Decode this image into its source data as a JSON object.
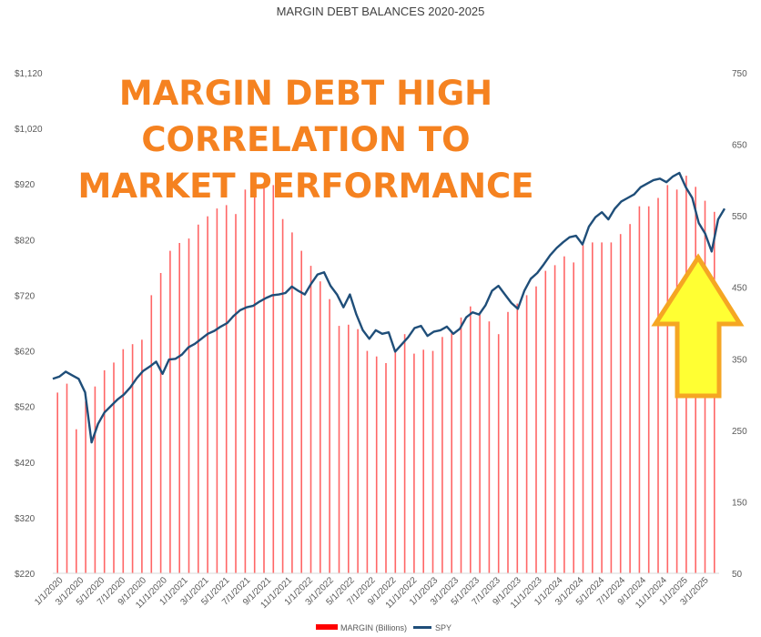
{
  "chart_data": {
    "type": "bar+line",
    "title": "MARGIN DEBT BALANCES 2020-2025",
    "annotation": [
      "MARGIN DEBT HIGH",
      "CORRELATION TO",
      "MARKET PERFORMANCE"
    ],
    "y_left": {
      "ticks": [
        "$220",
        "$320",
        "$420",
        "$520",
        "$620",
        "$720",
        "$820",
        "$920",
        "$1,020",
        "$1,120"
      ],
      "range": [
        220,
        1120
      ]
    },
    "y_right": {
      "ticks": [
        "50",
        "150",
        "250",
        "350",
        "450",
        "550",
        "650",
        "750"
      ],
      "range": [
        50,
        750
      ]
    },
    "x_ticks": [
      "1/1/2020",
      "3/1/2020",
      "5/1/2020",
      "7/1/2020",
      "9/1/2020",
      "11/1/2020",
      "1/1/2021",
      "3/1/2021",
      "5/1/2021",
      "7/1/2021",
      "9/1/2021",
      "11/1/2021",
      "1/1/2022",
      "3/1/2022",
      "5/1/2022",
      "7/1/2022",
      "9/1/2022",
      "11/1/2022",
      "1/1/2023",
      "3/1/2023",
      "5/1/2023",
      "7/1/2023",
      "9/1/2023",
      "11/1/2023",
      "1/1/2024",
      "3/1/2024",
      "5/1/2024",
      "7/1/2024",
      "9/1/2024",
      "11/1/2024",
      "1/1/2025",
      "3/1/2025"
    ],
    "margin_series": {
      "name": "MARGIN (Billions)",
      "color": "#ff0000",
      "values": [
        545,
        561,
        479,
        529,
        556,
        585,
        599,
        623,
        632,
        640,
        720,
        760,
        800,
        814,
        822,
        847,
        862,
        876,
        882,
        866,
        910,
        935,
        919,
        918,
        857,
        833,
        800,
        773,
        745,
        713,
        665,
        667,
        659,
        620,
        610,
        598,
        617,
        650,
        615,
        622,
        620,
        645,
        655,
        680,
        700,
        685,
        673,
        650,
        690,
        705,
        720,
        736,
        764,
        774,
        790,
        779,
        810,
        815,
        815,
        815,
        830,
        848,
        880,
        880,
        895,
        918,
        910,
        935,
        915,
        890,
        870
      ]
    },
    "spy_series": {
      "name": "SPY",
      "color": "#1f4e79",
      "values": [
        [
          0,
          322
        ],
        [
          1,
          325
        ],
        [
          2,
          332
        ],
        [
          3,
          327
        ],
        [
          4,
          322
        ],
        [
          5,
          303
        ],
        [
          6,
          233
        ],
        [
          7,
          259
        ],
        [
          8,
          275
        ],
        [
          9,
          284
        ],
        [
          10,
          293
        ],
        [
          11,
          300
        ],
        [
          12,
          310
        ],
        [
          13,
          323
        ],
        [
          14,
          333
        ],
        [
          15,
          339
        ],
        [
          16,
          346
        ],
        [
          17,
          329
        ],
        [
          18,
          349
        ],
        [
          19,
          350
        ],
        [
          20,
          356
        ],
        [
          21,
          366
        ],
        [
          22,
          371
        ],
        [
          23,
          378
        ],
        [
          24,
          385
        ],
        [
          25,
          389
        ],
        [
          26,
          395
        ],
        [
          27,
          400
        ],
        [
          28,
          410
        ],
        [
          29,
          418
        ],
        [
          30,
          422
        ],
        [
          31,
          424
        ],
        [
          32,
          430
        ],
        [
          33,
          435
        ],
        [
          34,
          439
        ],
        [
          35,
          440
        ],
        [
          36,
          442
        ],
        [
          37,
          451
        ],
        [
          38,
          445
        ],
        [
          39,
          440
        ],
        [
          40,
          455
        ],
        [
          41,
          468
        ],
        [
          42,
          471
        ],
        [
          43,
          452
        ],
        [
          44,
          440
        ],
        [
          45,
          422
        ],
        [
          46,
          440
        ],
        [
          47,
          412
        ],
        [
          48,
          390
        ],
        [
          49,
          378
        ],
        [
          50,
          390
        ],
        [
          51,
          385
        ],
        [
          52,
          387
        ],
        [
          53,
          360
        ],
        [
          54,
          370
        ],
        [
          55,
          380
        ],
        [
          56,
          393
        ],
        [
          57,
          396
        ],
        [
          58,
          382
        ],
        [
          59,
          388
        ],
        [
          60,
          390
        ],
        [
          61,
          395
        ],
        [
          62,
          385
        ],
        [
          63,
          392
        ],
        [
          64,
          408
        ],
        [
          65,
          415
        ],
        [
          66,
          412
        ],
        [
          67,
          425
        ],
        [
          68,
          445
        ],
        [
          69,
          452
        ],
        [
          70,
          440
        ],
        [
          71,
          428
        ],
        [
          72,
          420
        ],
        [
          73,
          445
        ],
        [
          74,
          462
        ],
        [
          75,
          470
        ],
        [
          76,
          482
        ],
        [
          77,
          495
        ],
        [
          78,
          505
        ],
        [
          79,
          513
        ],
        [
          80,
          520
        ],
        [
          81,
          522
        ],
        [
          82,
          510
        ],
        [
          83,
          535
        ],
        [
          84,
          548
        ],
        [
          85,
          555
        ],
        [
          86,
          545
        ],
        [
          87,
          560
        ],
        [
          88,
          570
        ],
        [
          89,
          575
        ],
        [
          90,
          580
        ],
        [
          91,
          590
        ],
        [
          92,
          595
        ],
        [
          93,
          600
        ],
        [
          94,
          602
        ],
        [
          95,
          597
        ],
        [
          96,
          605
        ],
        [
          97,
          610
        ],
        [
          98,
          590
        ],
        [
          99,
          575
        ],
        [
          100,
          540
        ],
        [
          101,
          525
        ],
        [
          102,
          500
        ],
        [
          103,
          545
        ],
        [
          104,
          560
        ]
      ]
    },
    "legend": [
      {
        "label": "MARGIN (Billions)",
        "color": "#ff0000"
      },
      {
        "label": "SPY",
        "color": "#1f4e79"
      }
    ],
    "arrow": {
      "color_fill": "#ffff33",
      "color_stroke": "#f5a623"
    },
    "grid": false,
    "legend_position": "bottom"
  }
}
